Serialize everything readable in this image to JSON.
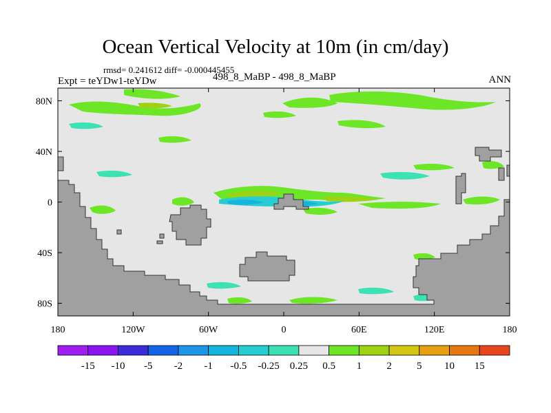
{
  "chart_data": {
    "type": "heatmap",
    "title": "Ocean Vertical Velocity at 10m (in cm/day)",
    "stats_text": "rmsd= 0.241612 diff= -0.000445455",
    "experiment_text": "Expt = teYDw1-teYDw",
    "cases_text": "498_8_MaBP - 498_8_MaBP",
    "season": "ANN",
    "x_axis": {
      "ticks": [
        {
          "value": -180,
          "label": "180"
        },
        {
          "value": -120,
          "label": "120W"
        },
        {
          "value": -60,
          "label": "60W"
        },
        {
          "value": 0,
          "label": "0"
        },
        {
          "value": 60,
          "label": "60E"
        },
        {
          "value": 120,
          "label": "120E"
        },
        {
          "value": 180,
          "label": "180"
        }
      ],
      "range": [
        -180,
        180
      ]
    },
    "y_axis": {
      "ticks": [
        {
          "value": 80,
          "label": "80N"
        },
        {
          "value": 40,
          "label": "40N"
        },
        {
          "value": 0,
          "label": "0"
        },
        {
          "value": -40,
          "label": "40S"
        },
        {
          "value": -80,
          "label": "80S"
        }
      ],
      "range": [
        -90,
        90
      ]
    },
    "colorbar": {
      "levels": [
        "-15",
        "-10",
        "-5",
        "-2",
        "-1",
        "-0.5",
        "-0.25",
        "0.25",
        "0.5",
        "1",
        "2",
        "5",
        "10",
        "15"
      ],
      "colors": [
        "#8c14f0",
        "#3c2bd8",
        "#1464e6",
        "#1e96e6",
        "#14b4dc",
        "#28cdd2",
        "#3ce1b4",
        "#e6e6e6",
        "#6ee628",
        "#a0d214",
        "#d2c814",
        "#e6a014",
        "#e67814",
        "#e6461e"
      ]
    },
    "land_color": "#a0a0a0"
  }
}
